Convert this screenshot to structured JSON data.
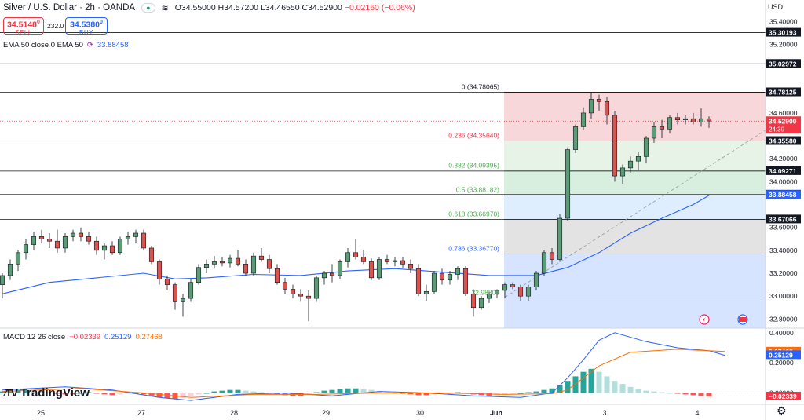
{
  "header": {
    "symbol": "Silver / U.S. Dollar · 2h · OANDA",
    "icons": [
      "eye-icon",
      "waves-icon"
    ],
    "open": "O34.55000",
    "high": "H34.57200",
    "low": "L34.46550",
    "close": "C34.52900",
    "change": "−0.02160 (−0.06%)"
  },
  "trade": {
    "sell_price": "34.5148",
    "sell_sup": "0",
    "sell_label": "SELL",
    "spread": "232.0",
    "buy_price": "34.5380",
    "buy_sup": "0",
    "buy_label": "BUY"
  },
  "ema_legend": {
    "label": "EMA 50 close 0 EMA 50",
    "value": "33.88458"
  },
  "macd_legend": {
    "label": "MACD 12 26 close",
    "macd": "−0.02339",
    "signal": "0.25129",
    "hist": "0.27468"
  },
  "currency": "USD",
  "brand": "TradingView",
  "colors": {
    "up": "#5b9c77",
    "down": "#d9534f",
    "ema": "#2962ff",
    "macd": "#2962ff",
    "signal": "#ff6d00",
    "fib_236": "#f8d7da",
    "fib_382": "#e6f3e6",
    "fib_5": "#d8efe0",
    "fib_618": "#dfeeff",
    "fib_786": "#e3e3e3",
    "fib_1": "#d6e4ff"
  },
  "chart_data": {
    "type": "candlestick",
    "price_axis": {
      "ticks": [
        "35.40000",
        "35.20000",
        "34.60000",
        "34.20000",
        "34.00000",
        "33.60000",
        "33.40000",
        "33.20000",
        "33.00000",
        "32.80000"
      ],
      "ylim": [
        32.72,
        35.45
      ]
    },
    "time_axis": {
      "ticks": [
        "25",
        "27",
        "28",
        "29",
        "30",
        "Jun",
        "3",
        "4"
      ]
    },
    "price_labels": [
      {
        "value": 35.30193,
        "text": "35.30193",
        "style": "dark"
      },
      {
        "value": 35.02972,
        "text": "35.02972",
        "style": "dark"
      },
      {
        "value": 34.78125,
        "text": "34.78125",
        "style": "dark"
      },
      {
        "value": 34.529,
        "text": "34.52900",
        "sub": "24:39",
        "style": "red"
      },
      {
        "value": 34.3558,
        "text": "34.35580",
        "style": "dark"
      },
      {
        "value": 34.09271,
        "text": "34.09271",
        "style": "dark"
      },
      {
        "value": 33.88724,
        "text": "33.88724",
        "style": "dark"
      },
      {
        "value": 33.88458,
        "text": "33.88458",
        "style": "blue"
      },
      {
        "value": 33.67066,
        "text": "33.67066",
        "style": "dark"
      }
    ],
    "horizontal_lines": [
      35.30193,
      35.02972,
      34.78125,
      34.3558,
      34.09271,
      33.88724,
      33.67066
    ],
    "fibonacci": [
      {
        "level": "0",
        "price": 34.78065,
        "text": "0 (34.78065)"
      },
      {
        "level": "0.236",
        "price": 34.3564,
        "text": "0.236 (34.35640)"
      },
      {
        "level": "0.382",
        "price": 34.09395,
        "text": "0.382 (34.09395)"
      },
      {
        "level": "0.5",
        "price": 33.88182,
        "text": "0.5 (33.88182)"
      },
      {
        "level": "0.618",
        "price": 33.6697,
        "text": "0.618 (33.66970)"
      },
      {
        "level": "0.786",
        "price": 33.3677,
        "text": "0.786 (33.36770)"
      },
      {
        "level": "1",
        "price": 32.983,
        "text": "32.98300"
      }
    ],
    "candles": [
      [
        33.1,
        33.2,
        32.98,
        33.18
      ],
      [
        33.18,
        33.32,
        33.14,
        33.28
      ],
      [
        33.28,
        33.4,
        33.22,
        33.38
      ],
      [
        33.38,
        33.5,
        33.32,
        33.45
      ],
      [
        33.45,
        33.56,
        33.4,
        33.52
      ],
      [
        33.52,
        33.58,
        33.46,
        33.5
      ],
      [
        33.5,
        33.55,
        33.42,
        33.48
      ],
      [
        33.48,
        33.58,
        33.38,
        33.42
      ],
      [
        33.42,
        33.55,
        33.38,
        33.52
      ],
      [
        33.52,
        33.58,
        33.48,
        33.55
      ],
      [
        33.55,
        33.6,
        33.48,
        33.52
      ],
      [
        33.52,
        33.56,
        33.45,
        33.48
      ],
      [
        33.48,
        33.52,
        33.36,
        33.4
      ],
      [
        33.4,
        33.46,
        33.32,
        33.44
      ],
      [
        33.44,
        33.48,
        33.36,
        33.38
      ],
      [
        33.38,
        33.52,
        33.36,
        33.5
      ],
      [
        33.5,
        33.56,
        33.45,
        33.52
      ],
      [
        33.52,
        33.58,
        33.46,
        33.55
      ],
      [
        33.55,
        33.58,
        33.4,
        33.42
      ],
      [
        33.42,
        33.44,
        33.28,
        33.3
      ],
      [
        33.3,
        33.32,
        33.1,
        33.15
      ],
      [
        33.15,
        33.18,
        33.05,
        33.1
      ],
      [
        33.1,
        33.12,
        32.88,
        32.95
      ],
      [
        32.95,
        33.02,
        32.82,
        32.98
      ],
      [
        32.98,
        33.15,
        32.95,
        33.12
      ],
      [
        33.12,
        33.28,
        33.1,
        33.25
      ],
      [
        33.25,
        33.32,
        33.2,
        33.28
      ],
      [
        33.28,
        33.35,
        33.24,
        33.3
      ],
      [
        33.3,
        33.34,
        33.26,
        33.29
      ],
      [
        33.29,
        33.36,
        33.25,
        33.33
      ],
      [
        33.33,
        33.4,
        33.26,
        33.28
      ],
      [
        33.28,
        33.32,
        33.18,
        33.2
      ],
      [
        33.2,
        33.38,
        33.18,
        33.35
      ],
      [
        33.35,
        33.42,
        33.3,
        33.32
      ],
      [
        33.32,
        33.36,
        33.2,
        33.24
      ],
      [
        33.24,
        33.28,
        33.1,
        33.12
      ],
      [
        33.12,
        33.16,
        33.02,
        33.06
      ],
      [
        33.06,
        33.1,
        32.98,
        33.02
      ],
      [
        33.02,
        33.06,
        32.95,
        33.0
      ],
      [
        33.0,
        33.05,
        32.78,
        32.98
      ],
      [
        32.98,
        33.18,
        32.95,
        33.16
      ],
      [
        33.16,
        33.22,
        33.1,
        33.2
      ],
      [
        33.2,
        33.28,
        33.12,
        33.18
      ],
      [
        33.18,
        33.32,
        33.15,
        33.3
      ],
      [
        33.3,
        33.42,
        33.25,
        33.38
      ],
      [
        33.38,
        33.5,
        33.32,
        33.34
      ],
      [
        33.34,
        33.4,
        33.28,
        33.3
      ],
      [
        33.3,
        33.33,
        33.14,
        33.16
      ],
      [
        33.16,
        33.34,
        33.14,
        33.32
      ],
      [
        33.32,
        33.36,
        33.28,
        33.3
      ],
      [
        33.3,
        33.34,
        33.26,
        33.31
      ],
      [
        33.31,
        33.34,
        33.25,
        33.28
      ],
      [
        33.28,
        33.32,
        33.2,
        33.24
      ],
      [
        33.24,
        33.28,
        33.0,
        33.02
      ],
      [
        33.02,
        33.1,
        32.96,
        33.04
      ],
      [
        33.04,
        33.22,
        33.02,
        33.2
      ],
      [
        33.2,
        33.24,
        33.1,
        33.14
      ],
      [
        33.14,
        33.22,
        33.1,
        33.19
      ],
      [
        33.19,
        33.26,
        33.14,
        33.24
      ],
      [
        33.24,
        33.26,
        33.0,
        33.02
      ],
      [
        33.02,
        33.06,
        32.82,
        32.9
      ],
      [
        32.9,
        33.0,
        32.88,
        32.98
      ],
      [
        32.98,
        33.04,
        32.94,
        33.02
      ],
      [
        33.02,
        33.06,
        32.98,
        33.05
      ],
      [
        33.05,
        33.12,
        32.98,
        33.1
      ],
      [
        33.1,
        33.12,
        33.06,
        33.08
      ],
      [
        33.08,
        33.1,
        32.96,
        33.0
      ],
      [
        33.0,
        33.1,
        32.96,
        33.08
      ],
      [
        33.08,
        33.22,
        33.05,
        33.2
      ],
      [
        33.2,
        33.4,
        33.18,
        33.38
      ],
      [
        33.38,
        33.42,
        33.28,
        33.32
      ],
      [
        33.32,
        33.72,
        33.3,
        33.68
      ],
      [
        33.68,
        34.3,
        33.66,
        34.28
      ],
      [
        34.28,
        34.5,
        34.25,
        34.48
      ],
      [
        34.48,
        34.65,
        34.45,
        34.6
      ],
      [
        34.6,
        34.78,
        34.55,
        34.72
      ],
      [
        34.72,
        34.76,
        34.62,
        34.7
      ],
      [
        34.7,
        34.74,
        34.5,
        34.58
      ],
      [
        34.58,
        34.62,
        34.0,
        34.05
      ],
      [
        34.05,
        34.15,
        33.98,
        34.12
      ],
      [
        34.12,
        34.22,
        34.08,
        34.18
      ],
      [
        34.18,
        34.26,
        34.1,
        34.22
      ],
      [
        34.22,
        34.4,
        34.16,
        34.38
      ],
      [
        34.38,
        34.52,
        34.34,
        34.48
      ],
      [
        34.48,
        34.54,
        34.38,
        34.46
      ],
      [
        34.46,
        34.58,
        34.42,
        34.56
      ],
      [
        34.56,
        34.6,
        34.5,
        34.54
      ],
      [
        34.54,
        34.58,
        34.5,
        34.55
      ],
      [
        34.55,
        34.6,
        34.5,
        34.52
      ],
      [
        34.52,
        34.64,
        34.48,
        34.55
      ],
      [
        34.55,
        34.57,
        34.47,
        34.53
      ]
    ],
    "ema": [
      [
        0,
        33.02
      ],
      [
        6,
        33.12
      ],
      [
        12,
        33.16
      ],
      [
        18,
        33.2
      ],
      [
        22,
        33.15
      ],
      [
        26,
        33.16
      ],
      [
        32,
        33.19
      ],
      [
        38,
        33.18
      ],
      [
        44,
        33.22
      ],
      [
        50,
        33.24
      ],
      [
        56,
        33.21
      ],
      [
        62,
        33.18
      ],
      [
        68,
        33.18
      ],
      [
        72,
        33.25
      ],
      [
        76,
        33.38
      ],
      [
        80,
        33.55
      ],
      [
        84,
        33.68
      ],
      [
        88,
        33.8
      ],
      [
        90,
        33.88
      ]
    ],
    "trendline": [
      [
        64,
        32.99
      ],
      [
        92,
        34.45
      ]
    ],
    "macd_axis": {
      "ticks": [
        "0.40000",
        "0.20000",
        "0.00000"
      ],
      "ylim": [
        -0.06,
        0.42
      ]
    },
    "macd_labels": [
      {
        "value": 0.27468,
        "text": "0.27468",
        "style": "orange"
      },
      {
        "value": 0.25129,
        "text": "0.25129",
        "style": "blue"
      },
      {
        "value": -0.02339,
        "text": "−0.02339",
        "style": "red"
      }
    ],
    "macd": [
      [
        0,
        0.02
      ],
      [
        8,
        0.04
      ],
      [
        14,
        0.02
      ],
      [
        20,
        -0.03
      ],
      [
        24,
        -0.05
      ],
      [
        30,
        -0.01
      ],
      [
        36,
        0.0
      ],
      [
        42,
        -0.02
      ],
      [
        48,
        0.01
      ],
      [
        54,
        0.0
      ],
      [
        60,
        -0.02
      ],
      [
        66,
        -0.03
      ],
      [
        70,
        0.0
      ],
      [
        72,
        0.1
      ],
      [
        74,
        0.22
      ],
      [
        76,
        0.35
      ],
      [
        78,
        0.4
      ],
      [
        82,
        0.34
      ],
      [
        86,
        0.3
      ],
      [
        90,
        0.28
      ],
      [
        92,
        0.25
      ]
    ],
    "signal": [
      [
        0,
        0.01
      ],
      [
        10,
        0.03
      ],
      [
        18,
        0.0
      ],
      [
        24,
        -0.03
      ],
      [
        32,
        -0.01
      ],
      [
        40,
        -0.01
      ],
      [
        48,
        0.0
      ],
      [
        56,
        0.0
      ],
      [
        64,
        -0.01
      ],
      [
        70,
        -0.005
      ],
      [
        72,
        0.02
      ],
      [
        76,
        0.18
      ],
      [
        80,
        0.27
      ],
      [
        86,
        0.29
      ],
      [
        92,
        0.275
      ]
    ],
    "histogram": [
      0.01,
      0.015,
      0.02,
      0.02,
      0.015,
      0.01,
      0.005,
      -0.005,
      -0.01,
      -0.01,
      0.0,
      0.005,
      -0.005,
      -0.01,
      -0.015,
      -0.01,
      -0.005,
      0.0,
      -0.01,
      -0.02,
      -0.03,
      -0.035,
      -0.04,
      -0.035,
      -0.02,
      -0.01,
      0.0,
      0.01,
      0.015,
      0.02,
      0.02,
      0.015,
      0.01,
      0.005,
      -0.005,
      -0.01,
      -0.015,
      -0.02,
      -0.02,
      -0.01,
      0.005,
      0.015,
      0.02,
      0.025,
      0.03,
      0.03,
      0.025,
      0.02,
      0.01,
      0.005,
      0.0,
      -0.005,
      -0.01,
      -0.015,
      -0.015,
      -0.01,
      -0.005,
      0.0,
      0.005,
      0.0,
      -0.01,
      -0.015,
      -0.02,
      -0.015,
      -0.01,
      -0.005,
      0.0,
      0.005,
      0.01,
      0.02,
      0.03,
      0.05,
      0.08,
      0.11,
      0.14,
      0.16,
      0.14,
      0.11,
      0.08,
      0.06,
      0.04,
      0.025,
      0.015,
      0.01,
      0.005,
      0.0,
      -0.005,
      -0.01,
      -0.015,
      -0.02,
      -0.023
    ]
  }
}
